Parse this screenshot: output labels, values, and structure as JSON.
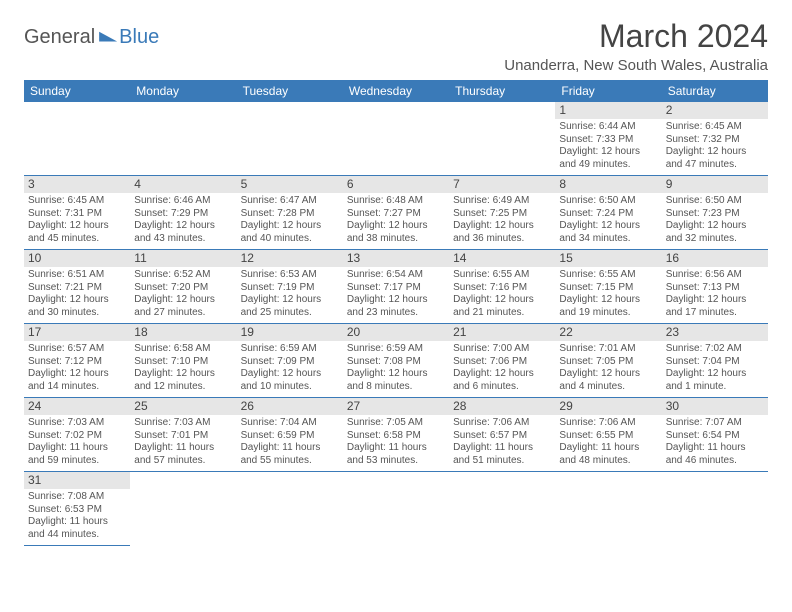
{
  "logo": {
    "general": "General",
    "blue": "Blue"
  },
  "title": "March 2024",
  "location": "Unanderra, New South Wales, Australia",
  "weekdays": [
    "Sunday",
    "Monday",
    "Tuesday",
    "Wednesday",
    "Thursday",
    "Friday",
    "Saturday"
  ],
  "colors": {
    "header_bg": "#3a7ab8",
    "header_fg": "#ffffff",
    "daynum_bg": "#e6e6e6",
    "text": "#555555"
  },
  "startOffset": 5,
  "days": [
    {
      "n": "1",
      "sunrise": "Sunrise: 6:44 AM",
      "sunset": "Sunset: 7:33 PM",
      "daylight": "Daylight: 12 hours and 49 minutes."
    },
    {
      "n": "2",
      "sunrise": "Sunrise: 6:45 AM",
      "sunset": "Sunset: 7:32 PM",
      "daylight": "Daylight: 12 hours and 47 minutes."
    },
    {
      "n": "3",
      "sunrise": "Sunrise: 6:45 AM",
      "sunset": "Sunset: 7:31 PM",
      "daylight": "Daylight: 12 hours and 45 minutes."
    },
    {
      "n": "4",
      "sunrise": "Sunrise: 6:46 AM",
      "sunset": "Sunset: 7:29 PM",
      "daylight": "Daylight: 12 hours and 43 minutes."
    },
    {
      "n": "5",
      "sunrise": "Sunrise: 6:47 AM",
      "sunset": "Sunset: 7:28 PM",
      "daylight": "Daylight: 12 hours and 40 minutes."
    },
    {
      "n": "6",
      "sunrise": "Sunrise: 6:48 AM",
      "sunset": "Sunset: 7:27 PM",
      "daylight": "Daylight: 12 hours and 38 minutes."
    },
    {
      "n": "7",
      "sunrise": "Sunrise: 6:49 AM",
      "sunset": "Sunset: 7:25 PM",
      "daylight": "Daylight: 12 hours and 36 minutes."
    },
    {
      "n": "8",
      "sunrise": "Sunrise: 6:50 AM",
      "sunset": "Sunset: 7:24 PM",
      "daylight": "Daylight: 12 hours and 34 minutes."
    },
    {
      "n": "9",
      "sunrise": "Sunrise: 6:50 AM",
      "sunset": "Sunset: 7:23 PM",
      "daylight": "Daylight: 12 hours and 32 minutes."
    },
    {
      "n": "10",
      "sunrise": "Sunrise: 6:51 AM",
      "sunset": "Sunset: 7:21 PM",
      "daylight": "Daylight: 12 hours and 30 minutes."
    },
    {
      "n": "11",
      "sunrise": "Sunrise: 6:52 AM",
      "sunset": "Sunset: 7:20 PM",
      "daylight": "Daylight: 12 hours and 27 minutes."
    },
    {
      "n": "12",
      "sunrise": "Sunrise: 6:53 AM",
      "sunset": "Sunset: 7:19 PM",
      "daylight": "Daylight: 12 hours and 25 minutes."
    },
    {
      "n": "13",
      "sunrise": "Sunrise: 6:54 AM",
      "sunset": "Sunset: 7:17 PM",
      "daylight": "Daylight: 12 hours and 23 minutes."
    },
    {
      "n": "14",
      "sunrise": "Sunrise: 6:55 AM",
      "sunset": "Sunset: 7:16 PM",
      "daylight": "Daylight: 12 hours and 21 minutes."
    },
    {
      "n": "15",
      "sunrise": "Sunrise: 6:55 AM",
      "sunset": "Sunset: 7:15 PM",
      "daylight": "Daylight: 12 hours and 19 minutes."
    },
    {
      "n": "16",
      "sunrise": "Sunrise: 6:56 AM",
      "sunset": "Sunset: 7:13 PM",
      "daylight": "Daylight: 12 hours and 17 minutes."
    },
    {
      "n": "17",
      "sunrise": "Sunrise: 6:57 AM",
      "sunset": "Sunset: 7:12 PM",
      "daylight": "Daylight: 12 hours and 14 minutes."
    },
    {
      "n": "18",
      "sunrise": "Sunrise: 6:58 AM",
      "sunset": "Sunset: 7:10 PM",
      "daylight": "Daylight: 12 hours and 12 minutes."
    },
    {
      "n": "19",
      "sunrise": "Sunrise: 6:59 AM",
      "sunset": "Sunset: 7:09 PM",
      "daylight": "Daylight: 12 hours and 10 minutes."
    },
    {
      "n": "20",
      "sunrise": "Sunrise: 6:59 AM",
      "sunset": "Sunset: 7:08 PM",
      "daylight": "Daylight: 12 hours and 8 minutes."
    },
    {
      "n": "21",
      "sunrise": "Sunrise: 7:00 AM",
      "sunset": "Sunset: 7:06 PM",
      "daylight": "Daylight: 12 hours and 6 minutes."
    },
    {
      "n": "22",
      "sunrise": "Sunrise: 7:01 AM",
      "sunset": "Sunset: 7:05 PM",
      "daylight": "Daylight: 12 hours and 4 minutes."
    },
    {
      "n": "23",
      "sunrise": "Sunrise: 7:02 AM",
      "sunset": "Sunset: 7:04 PM",
      "daylight": "Daylight: 12 hours and 1 minute."
    },
    {
      "n": "24",
      "sunrise": "Sunrise: 7:03 AM",
      "sunset": "Sunset: 7:02 PM",
      "daylight": "Daylight: 11 hours and 59 minutes."
    },
    {
      "n": "25",
      "sunrise": "Sunrise: 7:03 AM",
      "sunset": "Sunset: 7:01 PM",
      "daylight": "Daylight: 11 hours and 57 minutes."
    },
    {
      "n": "26",
      "sunrise": "Sunrise: 7:04 AM",
      "sunset": "Sunset: 6:59 PM",
      "daylight": "Daylight: 11 hours and 55 minutes."
    },
    {
      "n": "27",
      "sunrise": "Sunrise: 7:05 AM",
      "sunset": "Sunset: 6:58 PM",
      "daylight": "Daylight: 11 hours and 53 minutes."
    },
    {
      "n": "28",
      "sunrise": "Sunrise: 7:06 AM",
      "sunset": "Sunset: 6:57 PM",
      "daylight": "Daylight: 11 hours and 51 minutes."
    },
    {
      "n": "29",
      "sunrise": "Sunrise: 7:06 AM",
      "sunset": "Sunset: 6:55 PM",
      "daylight": "Daylight: 11 hours and 48 minutes."
    },
    {
      "n": "30",
      "sunrise": "Sunrise: 7:07 AM",
      "sunset": "Sunset: 6:54 PM",
      "daylight": "Daylight: 11 hours and 46 minutes."
    },
    {
      "n": "31",
      "sunrise": "Sunrise: 7:08 AM",
      "sunset": "Sunset: 6:53 PM",
      "daylight": "Daylight: 11 hours and 44 minutes."
    }
  ]
}
